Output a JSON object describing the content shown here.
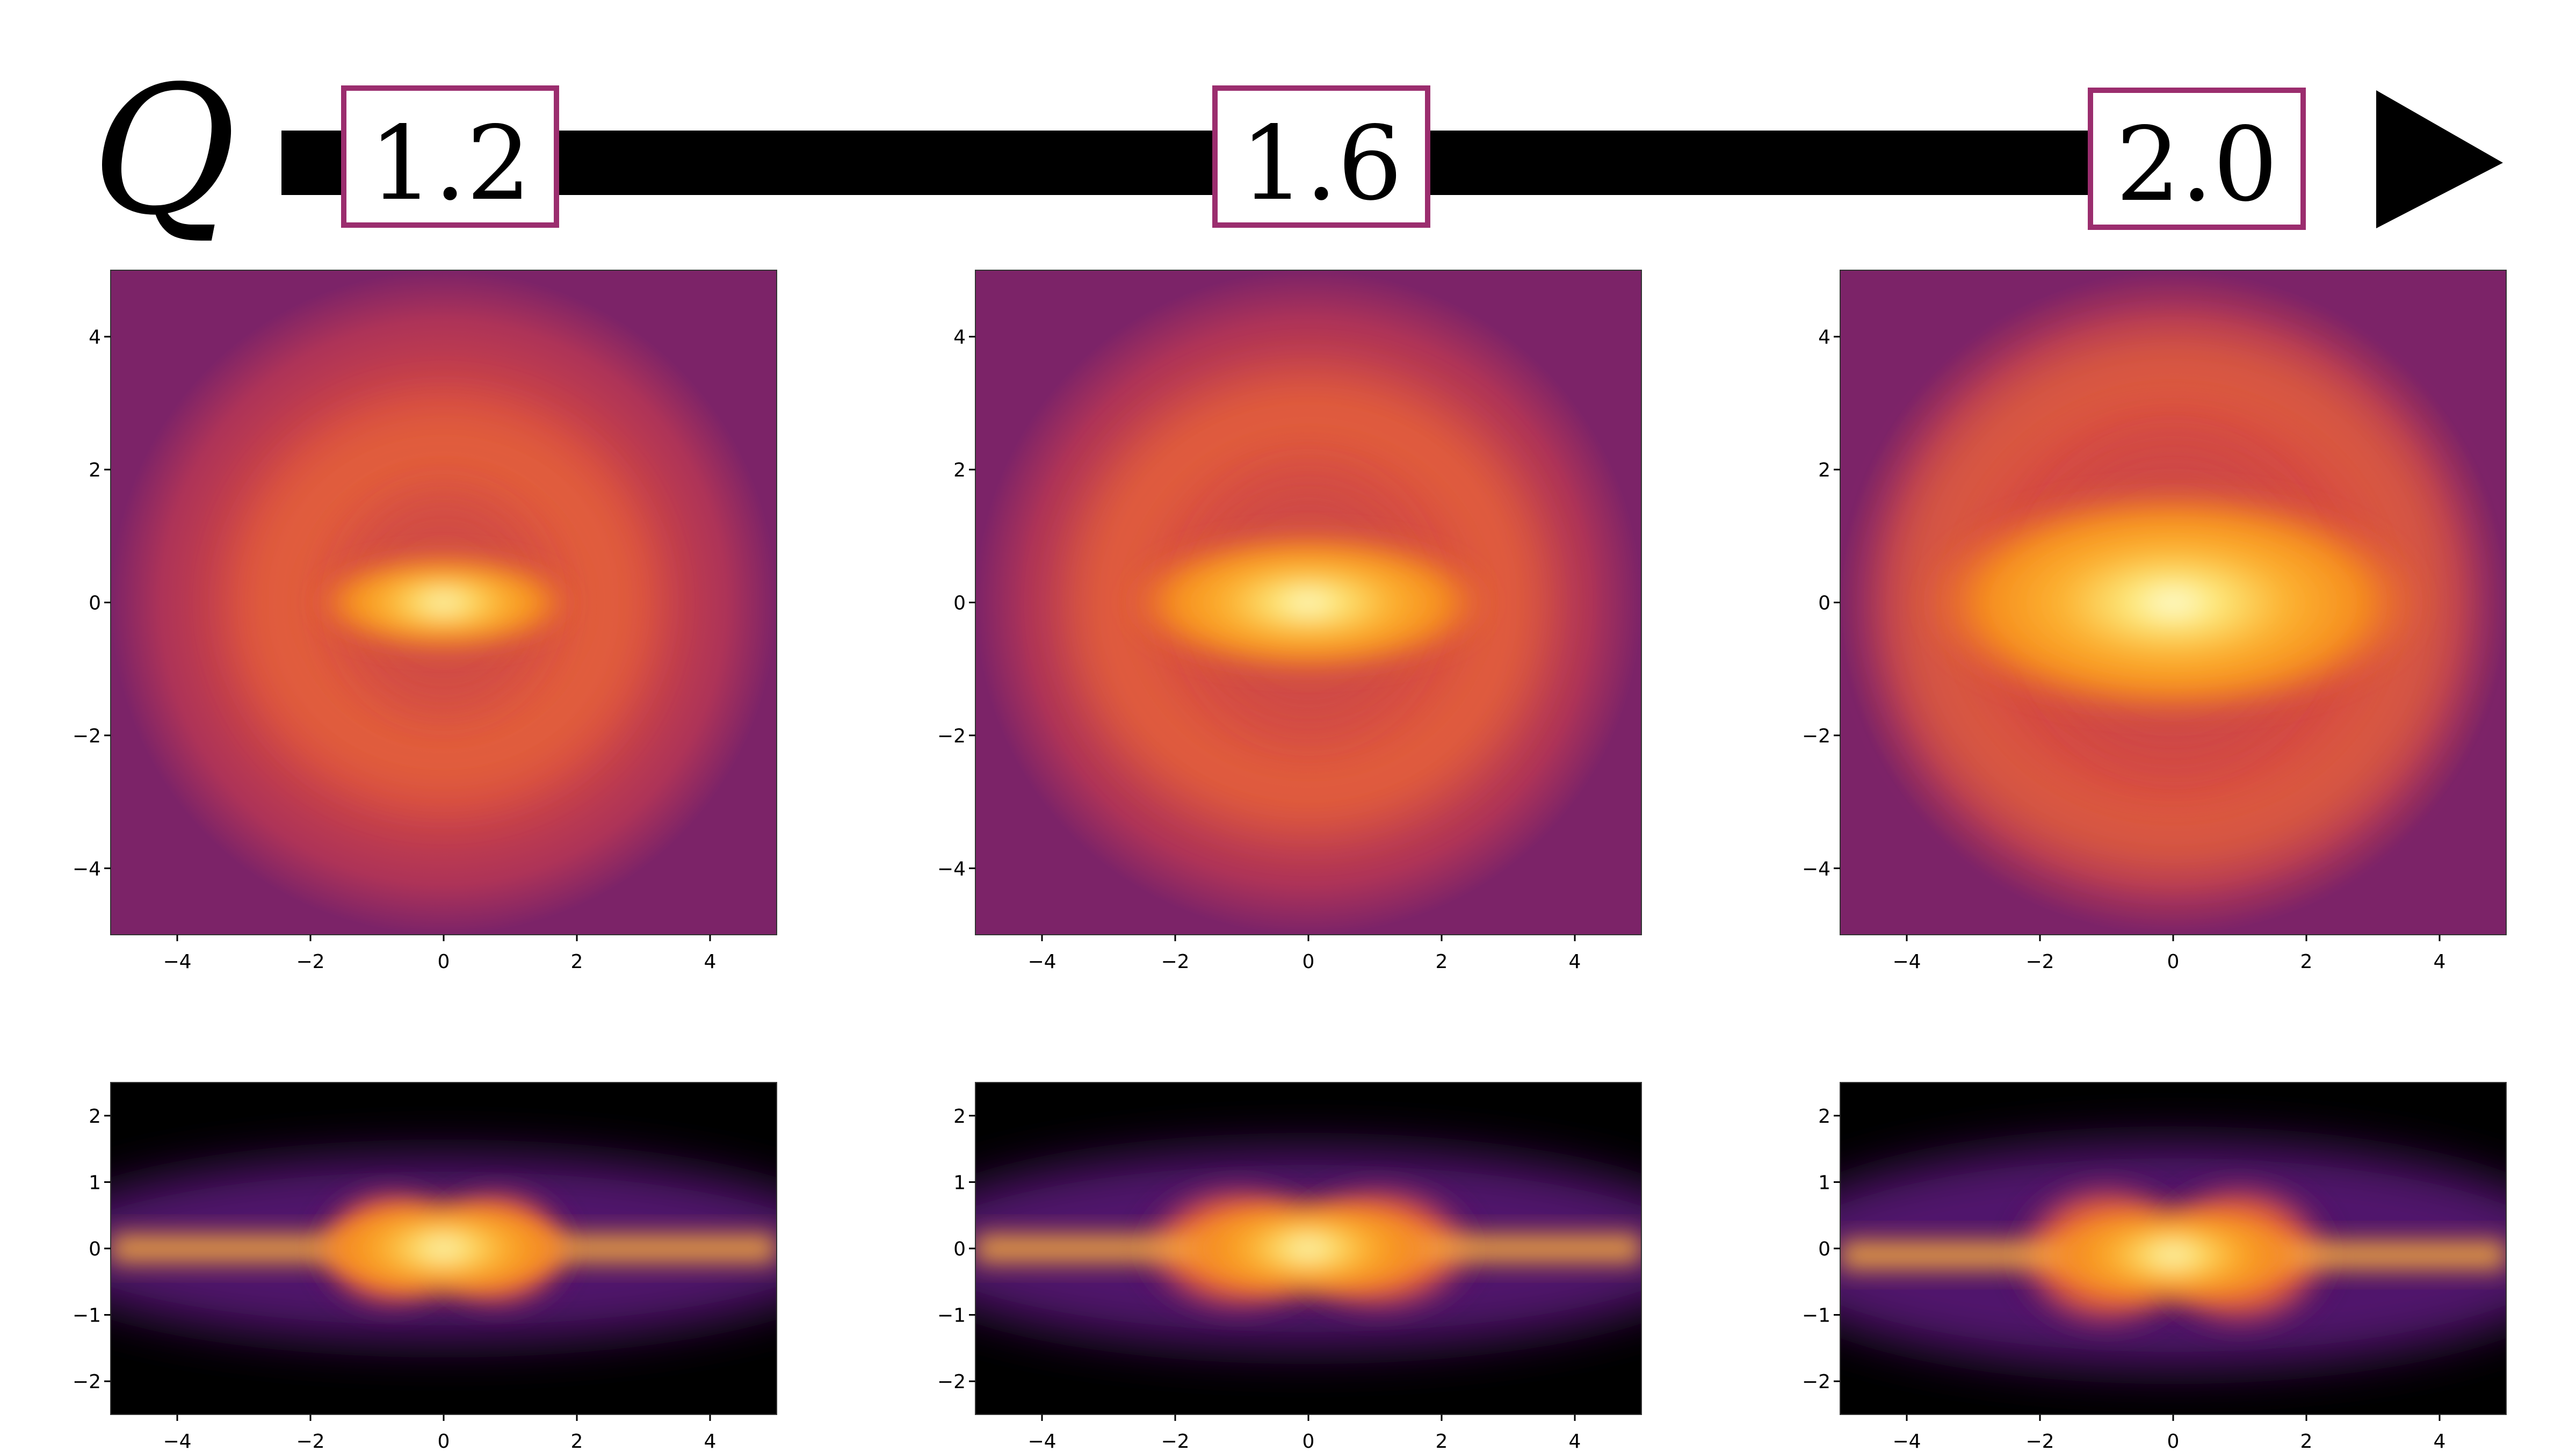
{
  "header": {
    "parameter_symbol": "Q",
    "arrow_color": "#000000",
    "box_border_color": "#9b2d6e",
    "values": [
      "1.2",
      "1.6",
      "2.0"
    ]
  },
  "colormap": "inferno",
  "chart_data": [
    {
      "type": "heatmap",
      "row": "face-on",
      "column_value": "1.2",
      "xlim": [
        -5,
        5
      ],
      "ylim": [
        -5,
        5
      ],
      "xticks": [
        "−4",
        "−2",
        "0",
        "2",
        "4"
      ],
      "yticks": [
        "4",
        "2",
        "0",
        "−2",
        "−4"
      ],
      "features": {
        "core_half_width_x": 1.7,
        "core_half_width_y": 0.55,
        "ring_radius": 2.5,
        "max_at": [
          0,
          0
        ]
      }
    },
    {
      "type": "heatmap",
      "row": "face-on",
      "column_value": "1.6",
      "xlim": [
        -5,
        5
      ],
      "ylim": [
        -5,
        5
      ],
      "xticks": [
        "−4",
        "−2",
        "0",
        "2",
        "4"
      ],
      "yticks": [
        "4",
        "2",
        "0",
        "−2",
        "−4"
      ],
      "features": {
        "core_half_width_x": 2.4,
        "core_half_width_y": 0.8,
        "ring_radius": 3.0,
        "max_at": [
          0,
          0
        ]
      }
    },
    {
      "type": "heatmap",
      "row": "face-on",
      "column_value": "2.0",
      "xlim": [
        -5,
        5
      ],
      "ylim": [
        -5,
        5
      ],
      "xticks": [
        "−4",
        "−2",
        "0",
        "2",
        "4"
      ],
      "yticks": [
        "4",
        "2",
        "0",
        "−2",
        "−4"
      ],
      "features": {
        "core_half_width_x": 3.3,
        "core_half_width_y": 1.3,
        "ring_radius": 3.7,
        "max_at": [
          0,
          0
        ]
      }
    },
    {
      "type": "heatmap",
      "row": "edge-on",
      "column_value": "1.2",
      "xlim": [
        -5,
        5
      ],
      "ylim": [
        -2.5,
        2.5
      ],
      "xticks": [
        "−4",
        "−2",
        "0",
        "2",
        "4"
      ],
      "yticks": [
        "2",
        "1",
        "0",
        "−1",
        "−2"
      ],
      "features": {
        "disc_half_height": 1.4,
        "peanut_lobes_x": 1.6,
        "max_at": [
          0,
          0
        ]
      }
    },
    {
      "type": "heatmap",
      "row": "edge-on",
      "column_value": "1.6",
      "xlim": [
        -5,
        5
      ],
      "ylim": [
        -2.5,
        2.5
      ],
      "xticks": [
        "−4",
        "−2",
        "0",
        "2",
        "4"
      ],
      "yticks": [
        "2",
        "1",
        "0",
        "−1",
        "−2"
      ],
      "features": {
        "disc_half_height": 1.5,
        "peanut_lobes_x": 2.1,
        "max_at": [
          0,
          0
        ]
      }
    },
    {
      "type": "heatmap",
      "row": "edge-on",
      "column_value": "2.0",
      "xlim": [
        -5,
        5
      ],
      "ylim": [
        -2.5,
        2.5
      ],
      "xticks": [
        "−4",
        "−2",
        "0",
        "2",
        "4"
      ],
      "yticks": [
        "2",
        "1",
        "0",
        "−1",
        "−2"
      ],
      "features": {
        "disc_half_height": 1.7,
        "peanut_lobes_x": 2.0,
        "max_at": [
          0,
          -0.1
        ]
      }
    }
  ]
}
